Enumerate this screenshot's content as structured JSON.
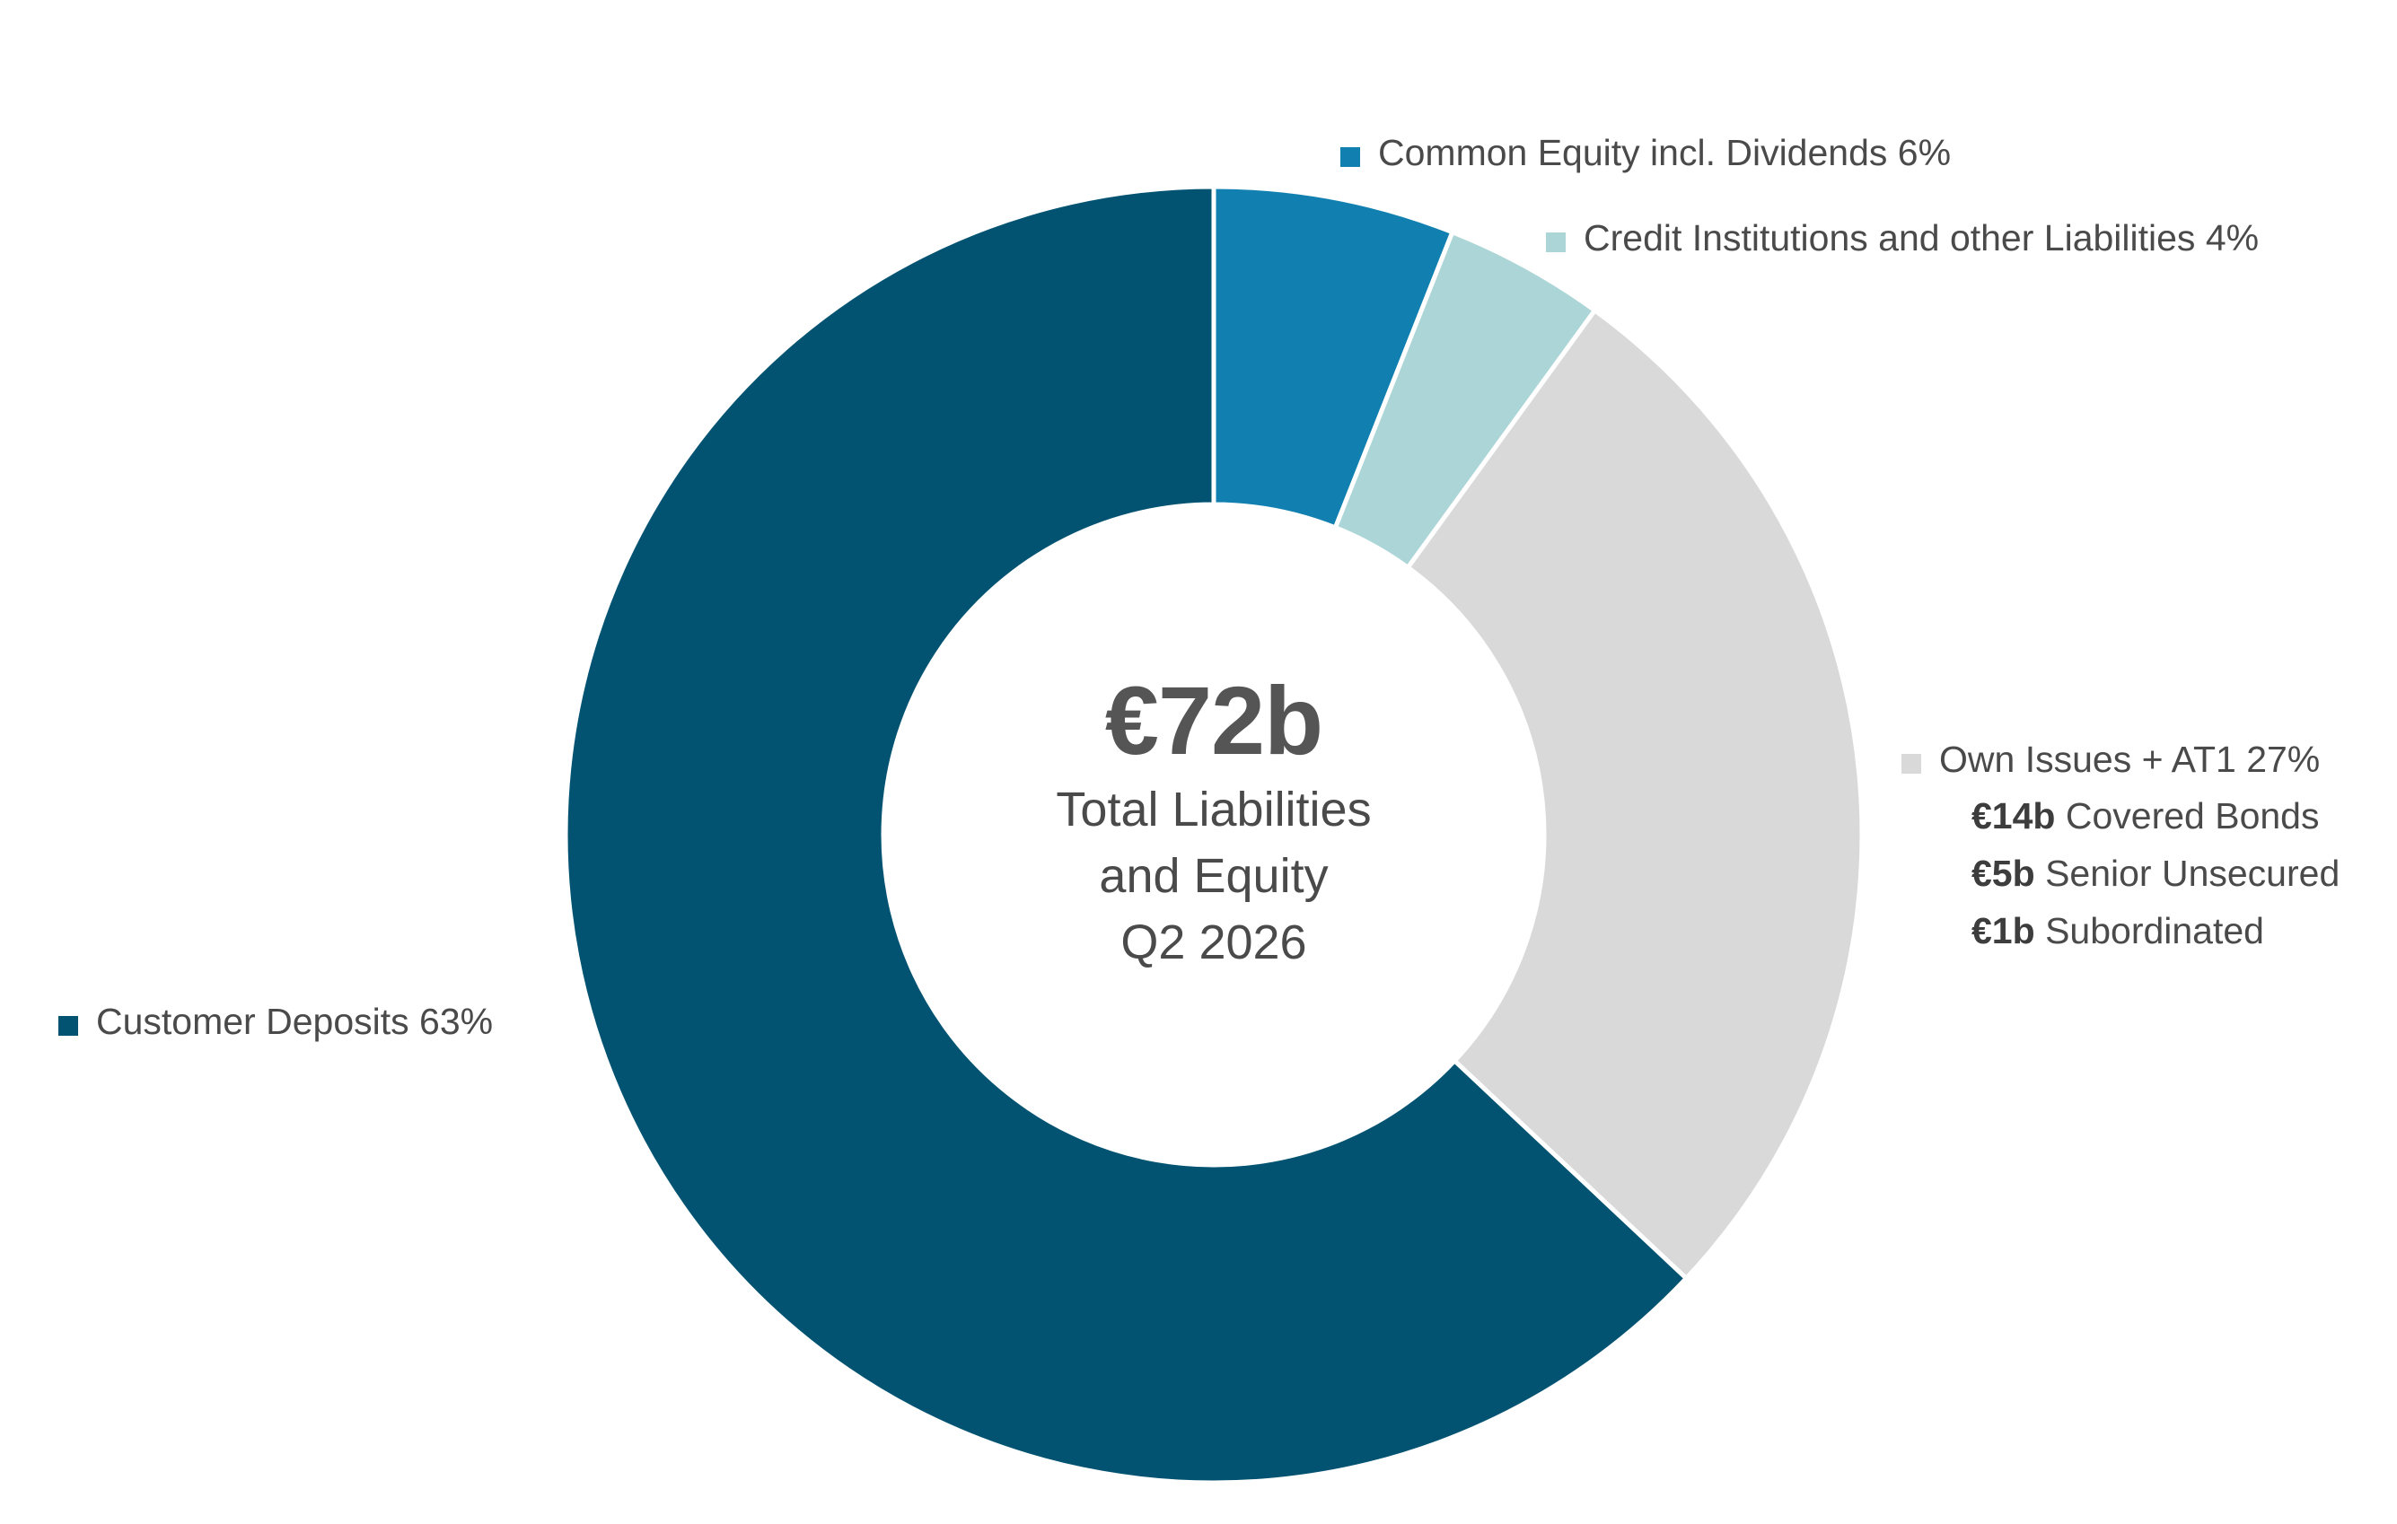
{
  "chart_data": {
    "type": "pie",
    "variant": "donut",
    "total_label": "€72b",
    "center_caption": [
      "Total Liabilities",
      "and Equity",
      "Q2 2026"
    ],
    "series": [
      {
        "name": "Common Equity incl. Dividends",
        "value": 6,
        "label": "Common Equity incl. Dividends 6%",
        "color": "#1180b0"
      },
      {
        "name": "Credit Institutions and other Liabilities",
        "value": 4,
        "label": "Credit Institutions and other Liabilities 4%",
        "color": "#acd5d7"
      },
      {
        "name": "Own Issues + AT1",
        "value": 27,
        "label": "Own Issues + AT1 27%",
        "color": "#d9d9d9",
        "breakdown": [
          {
            "amount": "€14b",
            "label": "Covered Bonds"
          },
          {
            "amount": "€5b",
            "label": "Senior Unsecured"
          },
          {
            "amount": "€1b",
            "label": "Subordinated"
          }
        ]
      },
      {
        "name": "Customer Deposits",
        "value": 63,
        "label": "Customer Deposits 63%",
        "color": "#025372"
      }
    ],
    "start_angle_deg": 0,
    "direction": "clockwise"
  }
}
